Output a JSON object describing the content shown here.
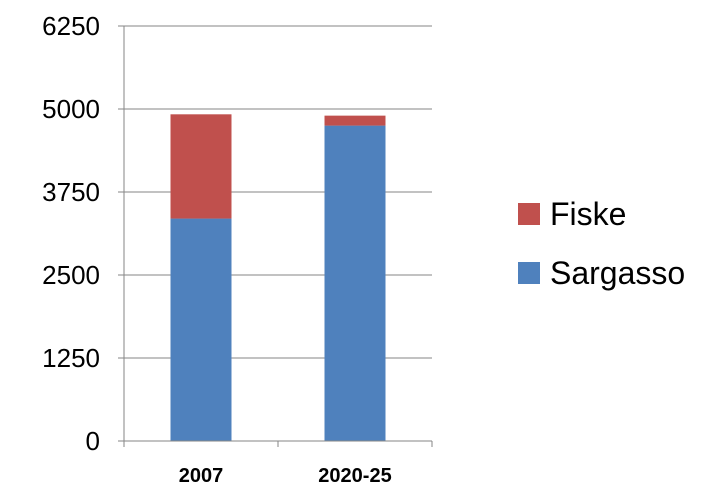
{
  "chart_data": {
    "type": "bar",
    "stacked": true,
    "categories": [
      "2007",
      "2020-25"
    ],
    "series": [
      {
        "name": "Sargasso",
        "values": [
          3350,
          4750
        ],
        "color": "#4F81BD"
      },
      {
        "name": "Fiske",
        "values": [
          1570,
          150
        ],
        "color": "#C0504D"
      }
    ],
    "ylim": [
      0,
      6250
    ],
    "yticks": [
      "0",
      "1250",
      "2500",
      "3750",
      "5000",
      "6250"
    ],
    "grid": true,
    "legend": "right",
    "legend_order": [
      "Fiske",
      "Sargasso"
    ]
  }
}
